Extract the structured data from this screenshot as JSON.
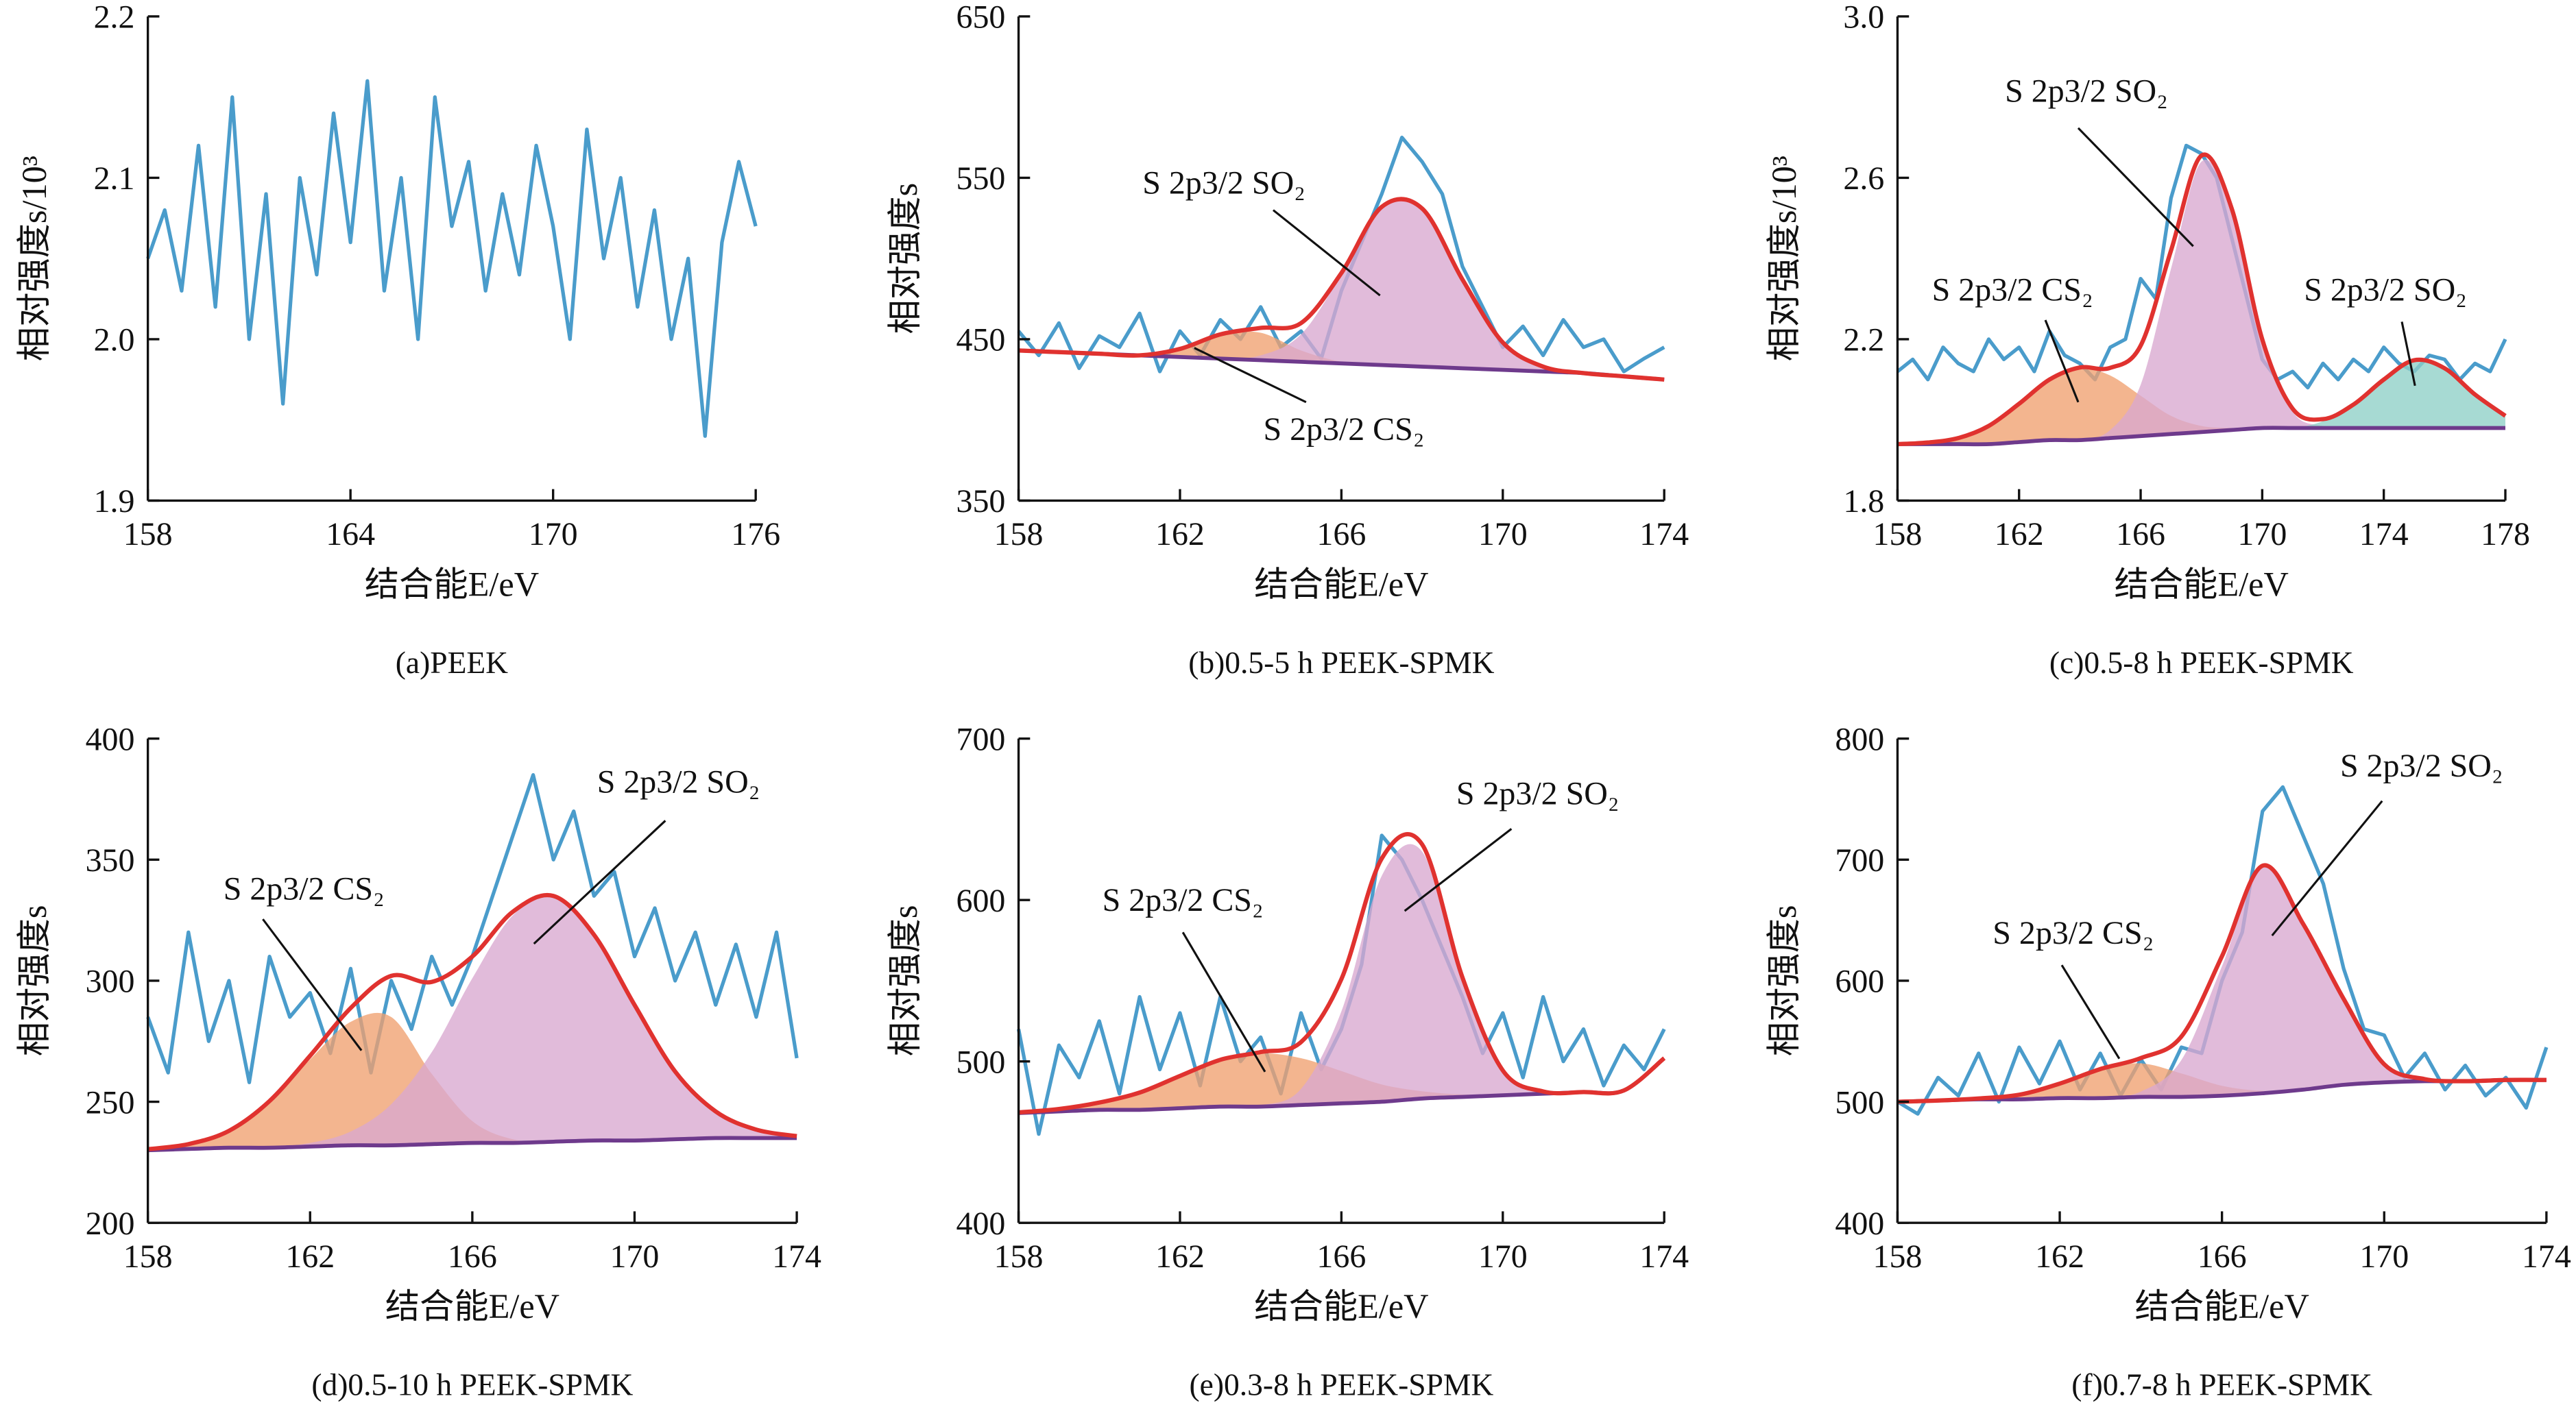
{
  "chart_data": [
    {
      "type": "line",
      "ylabel": "相对强度s/10³",
      "xlabel": "结合能E/eV",
      "caption": "(a)PEEK",
      "xlim": [
        158,
        176
      ],
      "xticks": [
        158,
        164,
        170,
        176
      ],
      "ylim": [
        1.9,
        2.2
      ],
      "yticks": [
        1.9,
        {
          "value": 2,
          "label": "2.0"
        },
        2.1,
        2.2
      ],
      "color": "#4a9ccb",
      "x": [
        158,
        158.5,
        159,
        159.5,
        160,
        160.5,
        161,
        161.5,
        162,
        162.5,
        163,
        163.5,
        164,
        164.5,
        165,
        165.5,
        166,
        166.5,
        167,
        167.5,
        168,
        168.5,
        169,
        169.5,
        170,
        170.5,
        171,
        171.5,
        172,
        172.5,
        173,
        173.5,
        174,
        174.5,
        175,
        175.5,
        176
      ],
      "values": [
        2.05,
        2.08,
        2.03,
        2.12,
        2.02,
        2.15,
        2.0,
        2.09,
        1.96,
        2.1,
        2.04,
        2.14,
        2.06,
        2.16,
        2.03,
        2.1,
        2.0,
        2.15,
        2.07,
        2.11,
        2.03,
        2.09,
        2.04,
        2.12,
        2.07,
        2.0,
        2.13,
        2.05,
        2.1,
        2.02,
        2.08,
        2.0,
        2.05,
        1.94,
        2.06,
        2.11,
        2.07
      ]
    },
    {
      "type": "fit",
      "ylabel": "相对强度s",
      "xlabel": "结合能E/eV",
      "caption": "(b)0.5-5 h PEEK-SPMK",
      "xlim": [
        158,
        174
      ],
      "xticks": [
        158,
        162,
        166,
        170,
        174
      ],
      "ylim": [
        350,
        650
      ],
      "yticks": [
        350,
        450,
        550,
        650
      ],
      "color": "#4a9ccb",
      "x": [
        158,
        158.5,
        159,
        159.5,
        160,
        160.5,
        161,
        161.5,
        162,
        162.5,
        163,
        163.5,
        164,
        164.5,
        165,
        165.5,
        166,
        166.5,
        167,
        167.5,
        168,
        168.5,
        169,
        169.5,
        170,
        170.5,
        171,
        171.5,
        172,
        172.5,
        173,
        173.5,
        174
      ],
      "values": [
        455,
        440,
        460,
        432,
        452,
        445,
        466,
        430,
        455,
        440,
        462,
        450,
        470,
        445,
        455,
        438,
        480,
        510,
        540,
        575,
        560,
        540,
        495,
        470,
        445,
        458,
        440,
        462,
        445,
        450,
        430,
        438,
        445
      ],
      "fit_x": [
        158,
        159,
        160,
        161,
        162,
        163,
        164,
        165,
        166,
        167,
        168,
        169,
        170,
        171,
        172,
        173,
        174
      ],
      "envelope": {
        "color": "#e0322f",
        "values": [
          443,
          442,
          441,
          440,
          444,
          453,
          457,
          460,
          491,
          532,
          531,
          487,
          448,
          433,
          429,
          427,
          425
        ]
      },
      "baseline": {
        "color": "#6e3a8c",
        "values": [
          443,
          442,
          441,
          440,
          439,
          438,
          437,
          436,
          435,
          434,
          433,
          432,
          431,
          430,
          429,
          427,
          425
        ]
      },
      "components": [
        {
          "color": "#f0a070",
          "values": [
            443,
            442,
            441,
            440,
            444,
            453,
            454,
            443,
            436,
            434,
            433,
            432,
            431,
            430,
            429,
            427,
            425
          ]
        },
        {
          "color": "#d8a8d0",
          "values": [
            443,
            442,
            441,
            440,
            439,
            438,
            440,
            453,
            490,
            532,
            531,
            487,
            448,
            433,
            429,
            427,
            425
          ]
        }
      ],
      "annotations": [
        "S 2p3/2 SO₂",
        "S 2p3/2 CS₂"
      ]
    },
    {
      "type": "fit",
      "ylabel": "相对强度s/10³",
      "xlabel": "结合能E/eV",
      "caption": "(c)0.5-8 h PEEK-SPMK",
      "xlim": [
        158,
        178
      ],
      "xticks": [
        158,
        162,
        166,
        170,
        174,
        178
      ],
      "ylim": [
        1.8,
        3.0
      ],
      "yticks": [
        1.8,
        2.2,
        2.6,
        {
          "value": 3,
          "label": "3.0"
        }
      ],
      "color": "#4a9ccb",
      "x": [
        158,
        158.5,
        159,
        159.5,
        160,
        160.5,
        161,
        161.5,
        162,
        162.5,
        163,
        163.5,
        164,
        164.5,
        165,
        165.5,
        166,
        166.5,
        167,
        167.5,
        168,
        168.5,
        169,
        169.5,
        170,
        170.5,
        171,
        171.5,
        172,
        172.5,
        173,
        173.5,
        174,
        174.5,
        175,
        175.5,
        176,
        176.5,
        177,
        177.5,
        178
      ],
      "values": [
        2.12,
        2.15,
        2.1,
        2.18,
        2.14,
        2.12,
        2.2,
        2.15,
        2.18,
        2.12,
        2.22,
        2.16,
        2.14,
        2.1,
        2.18,
        2.2,
        2.35,
        2.3,
        2.55,
        2.68,
        2.66,
        2.6,
        2.45,
        2.3,
        2.15,
        2.1,
        2.12,
        2.08,
        2.14,
        2.1,
        2.15,
        2.12,
        2.18,
        2.14,
        2.12,
        2.16,
        2.15,
        2.1,
        2.14,
        2.12,
        2.2
      ],
      "fit_x": [
        158,
        159,
        160,
        161,
        162,
        163,
        164,
        165,
        166,
        167,
        168,
        169,
        170,
        171,
        172,
        173,
        174,
        175,
        176,
        177,
        178
      ],
      "envelope": {
        "color": "#e0322f",
        "values": [
          1.94,
          1.944,
          1.955,
          1.985,
          2.04,
          2.1,
          2.13,
          2.129,
          2.184,
          2.42,
          2.655,
          2.523,
          2.2,
          2.028,
          2.002,
          2.038,
          2.1,
          2.148,
          2.128,
          2.063,
          2.01
        ]
      },
      "baseline": {
        "color": "#6e3a8c",
        "values": [
          1.94,
          1.94,
          1.94,
          1.94,
          1.945,
          1.95,
          1.95,
          1.955,
          1.96,
          1.965,
          1.97,
          1.975,
          1.98,
          1.98,
          1.98,
          1.98,
          1.98,
          1.98,
          1.98,
          1.98,
          1.98
        ]
      },
      "components": [
        {
          "color": "#f0a070",
          "values": [
            1.94,
            1.944,
            1.955,
            1.985,
            2.04,
            2.1,
            2.13,
            2.11,
            2.06,
            2.01,
            1.985,
            1.98,
            1.98,
            1.98,
            1.98,
            1.98,
            1.98,
            1.98,
            1.98,
            1.98,
            1.98
          ]
        },
        {
          "color": "#d8a8d0",
          "values": [
            1.94,
            1.94,
            1.94,
            1.94,
            1.945,
            1.95,
            1.95,
            1.975,
            2.087,
            2.375,
            2.64,
            2.52,
            2.2,
            2.02,
            1.985,
            1.98,
            1.98,
            1.98,
            1.98,
            1.98,
            1.98
          ]
        },
        {
          "color": "#8ed0c6",
          "values": [
            1.94,
            1.94,
            1.94,
            1.94,
            1.945,
            1.95,
            1.95,
            1.955,
            1.96,
            1.965,
            1.97,
            1.975,
            1.98,
            1.98,
            1.997,
            2.038,
            2.1,
            2.148,
            2.128,
            2.063,
            2.01
          ]
        }
      ],
      "annotations": [
        "S 2p3/2 SO₂",
        "S 2p3/2 CS₂",
        "S 2p3/2 SO₂"
      ]
    },
    {
      "type": "fit",
      "ylabel": "相对强度s",
      "xlabel": "结合能E/eV",
      "caption": "(d)0.5-10 h PEEK-SPMK",
      "xlim": [
        158,
        174
      ],
      "xticks": [
        158,
        162,
        166,
        170,
        174
      ],
      "ylim": [
        200,
        400
      ],
      "yticks": [
        200,
        250,
        300,
        350,
        400
      ],
      "color": "#4a9ccb",
      "x": [
        158,
        158.5,
        159,
        159.5,
        160,
        160.5,
        161,
        161.5,
        162,
        162.5,
        163,
        163.5,
        164,
        164.5,
        165,
        165.5,
        166,
        166.5,
        167,
        167.5,
        168,
        168.5,
        169,
        169.5,
        170,
        170.5,
        171,
        171.5,
        172,
        172.5,
        173,
        173.5,
        174
      ],
      "values": [
        285,
        262,
        320,
        275,
        300,
        258,
        310,
        285,
        295,
        270,
        305,
        262,
        300,
        280,
        310,
        290,
        310,
        335,
        360,
        385,
        350,
        370,
        335,
        345,
        310,
        330,
        300,
        320,
        290,
        315,
        285,
        320,
        268
      ],
      "fit_x": [
        158,
        159,
        160,
        161,
        162,
        163,
        164,
        165,
        166,
        167,
        168,
        169,
        170,
        171,
        172,
        173,
        174
      ],
      "envelope": {
        "color": "#e0322f",
        "values": [
          230.4,
          232.5,
          238,
          250.3,
          269,
          288.7,
          302,
          299.5,
          310,
          328.5,
          335,
          319,
          290,
          262.5,
          246,
          238.5,
          235.8
        ]
      },
      "baseline": {
        "color": "#6e3a8c",
        "values": [
          230,
          230.5,
          231,
          231,
          231.5,
          232,
          232,
          232.5,
          233,
          233,
          233.5,
          234,
          234,
          234.5,
          235,
          235,
          235
        ]
      },
      "components": [
        {
          "color": "#f0a070",
          "values": [
            230.4,
            232.5,
            238,
            250,
            267.5,
            283,
            285,
            261.5,
            242,
            234.5,
            233.5,
            234,
            234,
            234.5,
            235,
            235,
            235
          ]
        },
        {
          "color": "#d8a8d0",
          "values": [
            230,
            230.5,
            231,
            231.3,
            233,
            237.7,
            249,
            270.5,
            301,
            327,
            335,
            319,
            290,
            262.5,
            246,
            238.5,
            235.8
          ]
        }
      ],
      "annotations": [
        "S 2p3/2 CS₂",
        "S 2p3/2 SO₂"
      ]
    },
    {
      "type": "fit",
      "ylabel": "相对强度s",
      "xlabel": "结合能E/eV",
      "caption": "(e)0.3-8 h PEEK-SPMK",
      "xlim": [
        158,
        174
      ],
      "xticks": [
        158,
        162,
        166,
        170,
        174
      ],
      "ylim": [
        400,
        700
      ],
      "yticks": [
        400,
        500,
        600,
        700
      ],
      "color": "#4a9ccb",
      "x": [
        158,
        158.5,
        159,
        159.5,
        160,
        160.5,
        161,
        161.5,
        162,
        162.5,
        163,
        163.5,
        164,
        164.5,
        165,
        165.5,
        166,
        166.5,
        167,
        167.5,
        168,
        168.5,
        169,
        169.5,
        170,
        170.5,
        171,
        171.5,
        172,
        172.5,
        173,
        173.5,
        174
      ],
      "values": [
        520,
        455,
        510,
        490,
        525,
        480,
        540,
        495,
        530,
        485,
        540,
        500,
        515,
        480,
        530,
        495,
        520,
        560,
        640,
        625,
        600,
        570,
        540,
        505,
        530,
        490,
        540,
        500,
        520,
        485,
        510,
        495,
        520
      ],
      "fit_x": [
        158,
        159,
        160,
        161,
        162,
        163,
        164,
        165,
        166,
        167,
        168,
        169,
        170,
        171,
        172,
        173,
        174
      ],
      "envelope": {
        "color": "#e0322f",
        "values": [
          468.4,
          470.5,
          474.5,
          480.7,
          491,
          501,
          505.8,
          512,
          551,
          625.7,
          634.5,
          552,
          494.4,
          481.4,
          481,
          482,
          502
        ]
      },
      "baseline": {
        "color": "#6e3a8c",
        "values": [
          468,
          469,
          470,
          470,
          471,
          472,
          472,
          473,
          474,
          475,
          477,
          478,
          479,
          480,
          481,
          482,
          502
        ]
      },
      "components": [
        {
          "color": "#f0a070",
          "values": [
            468.4,
            470.5,
            474.5,
            480.7,
            491,
            501,
            505,
            502,
            494,
            485.7,
            481.5,
            479.5,
            479.4,
            480,
            481,
            482,
            502
          ]
        },
        {
          "color": "#d8a8d0",
          "values": [
            468,
            469,
            470,
            470,
            471,
            472,
            472.8,
            483,
            531,
            615,
            630,
            550.5,
            494,
            481.4,
            481,
            482,
            502
          ]
        }
      ],
      "annotations": [
        "S 2p3/2 CS₂",
        "S 2p3/2 SO₂"
      ]
    },
    {
      "type": "fit",
      "ylabel": "相对强度s",
      "xlabel": "结合能E/eV",
      "caption": "(f)0.7-8 h PEEK-SPMK",
      "xlim": [
        158,
        174
      ],
      "xticks": [
        158,
        162,
        166,
        170,
        174
      ],
      "ylim": [
        400,
        800
      ],
      "yticks": [
        400,
        500,
        600,
        700,
        800
      ],
      "color": "#4a9ccb",
      "x": [
        158,
        158.5,
        159,
        159.5,
        160,
        160.5,
        161,
        161.5,
        162,
        162.5,
        163,
        163.5,
        164,
        164.5,
        165,
        165.5,
        166,
        166.5,
        167,
        167.5,
        168,
        168.5,
        169,
        169.5,
        170,
        170.5,
        171,
        171.5,
        172,
        172.5,
        173,
        173.5,
        174
      ],
      "values": [
        500,
        490,
        520,
        505,
        540,
        500,
        545,
        515,
        550,
        510,
        540,
        505,
        535,
        510,
        545,
        540,
        600,
        640,
        740,
        760,
        720,
        680,
        610,
        560,
        555,
        520,
        540,
        510,
        530,
        505,
        520,
        495,
        545
      ],
      "fit_x": [
        158,
        159,
        160,
        161,
        162,
        163,
        164,
        165,
        166,
        167,
        168,
        169,
        170,
        171,
        172,
        173,
        174
      ],
      "envelope": {
        "color": "#e0322f",
        "values": [
          500,
          501,
          502.7,
          505.8,
          515,
          527,
          536.1,
          553.9,
          620.2,
          695,
          647,
          585,
          531,
          518.7,
          517,
          518,
          518
        ]
      },
      "baseline": {
        "color": "#6e3a8c",
        "values": [
          500,
          501,
          502,
          502,
          503,
          503,
          504,
          504,
          505,
          507,
          510,
          514,
          516,
          517,
          517,
          518,
          518
        ]
      },
      "components": [
        {
          "color": "#f0a070",
          "values": [
            500,
            501,
            502.7,
            505.8,
            515,
            527,
            531.7,
            523.4,
            513.2,
            509,
            510,
            514,
            516,
            517,
            517,
            518,
            518
          ]
        },
        {
          "color": "#d8a8d0",
          "values": [
            500,
            501,
            502,
            502,
            503,
            503,
            508.4,
            534.5,
            612,
            693,
            647,
            585,
            531,
            518.7,
            517,
            518,
            518
          ]
        }
      ],
      "annotations": [
        "S 2p3/2 CS₂",
        "S 2p3/2 SO₂"
      ]
    }
  ]
}
